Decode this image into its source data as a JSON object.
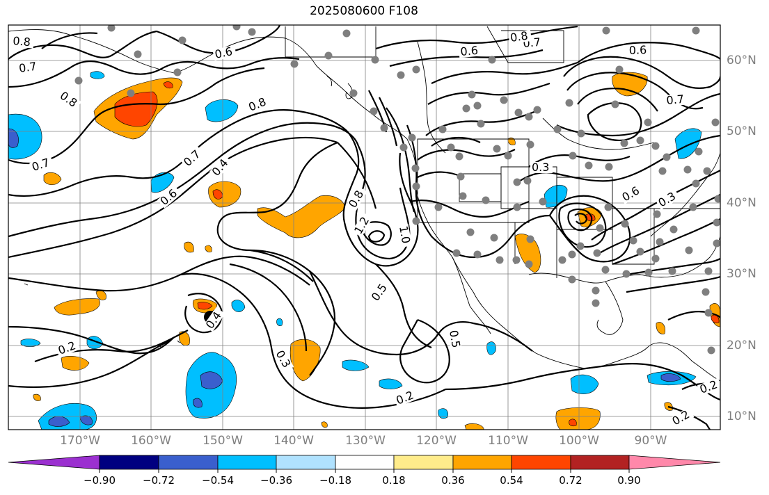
{
  "title": "2025080600 F108",
  "latitude_labels": [
    "60°N",
    "50°N",
    "40°N",
    "30°N",
    "20°N",
    "10°N"
  ],
  "longitude_labels": [
    "170°W",
    "160°W",
    "150°W",
    "140°W",
    "130°W",
    "120°W",
    "110°W",
    "100°W",
    "90°W"
  ],
  "colorbar": {
    "tick_labels": [
      "−0.90",
      "−0.72",
      "−0.54",
      "−0.36",
      "−0.18",
      "0.18",
      "0.36",
      "0.54",
      "0.72",
      "0.90"
    ],
    "colors": [
      "#9b30d0",
      "#000080",
      "#3a5fcd",
      "#00bfff",
      "#b0e2ff",
      "#ffffff",
      "#ffec8b",
      "#ffa500",
      "#ff4500",
      "#b22222",
      "#ff88aa"
    ]
  },
  "contour_labels": [
    "0.8",
    "0.7",
    "0.6",
    "0.8",
    "0.7",
    "0.8",
    "0.7",
    "0.6",
    "0.4",
    "0.8",
    "1.2",
    "1.0",
    "0.5",
    "0.5",
    "0.4",
    "0.3",
    "0.2",
    "0.2",
    "0.6",
    "0.7",
    "0.6",
    "0.8",
    "0.7",
    "0.3",
    "0.6",
    "0.3",
    "0.2",
    "0.2"
  ]
}
